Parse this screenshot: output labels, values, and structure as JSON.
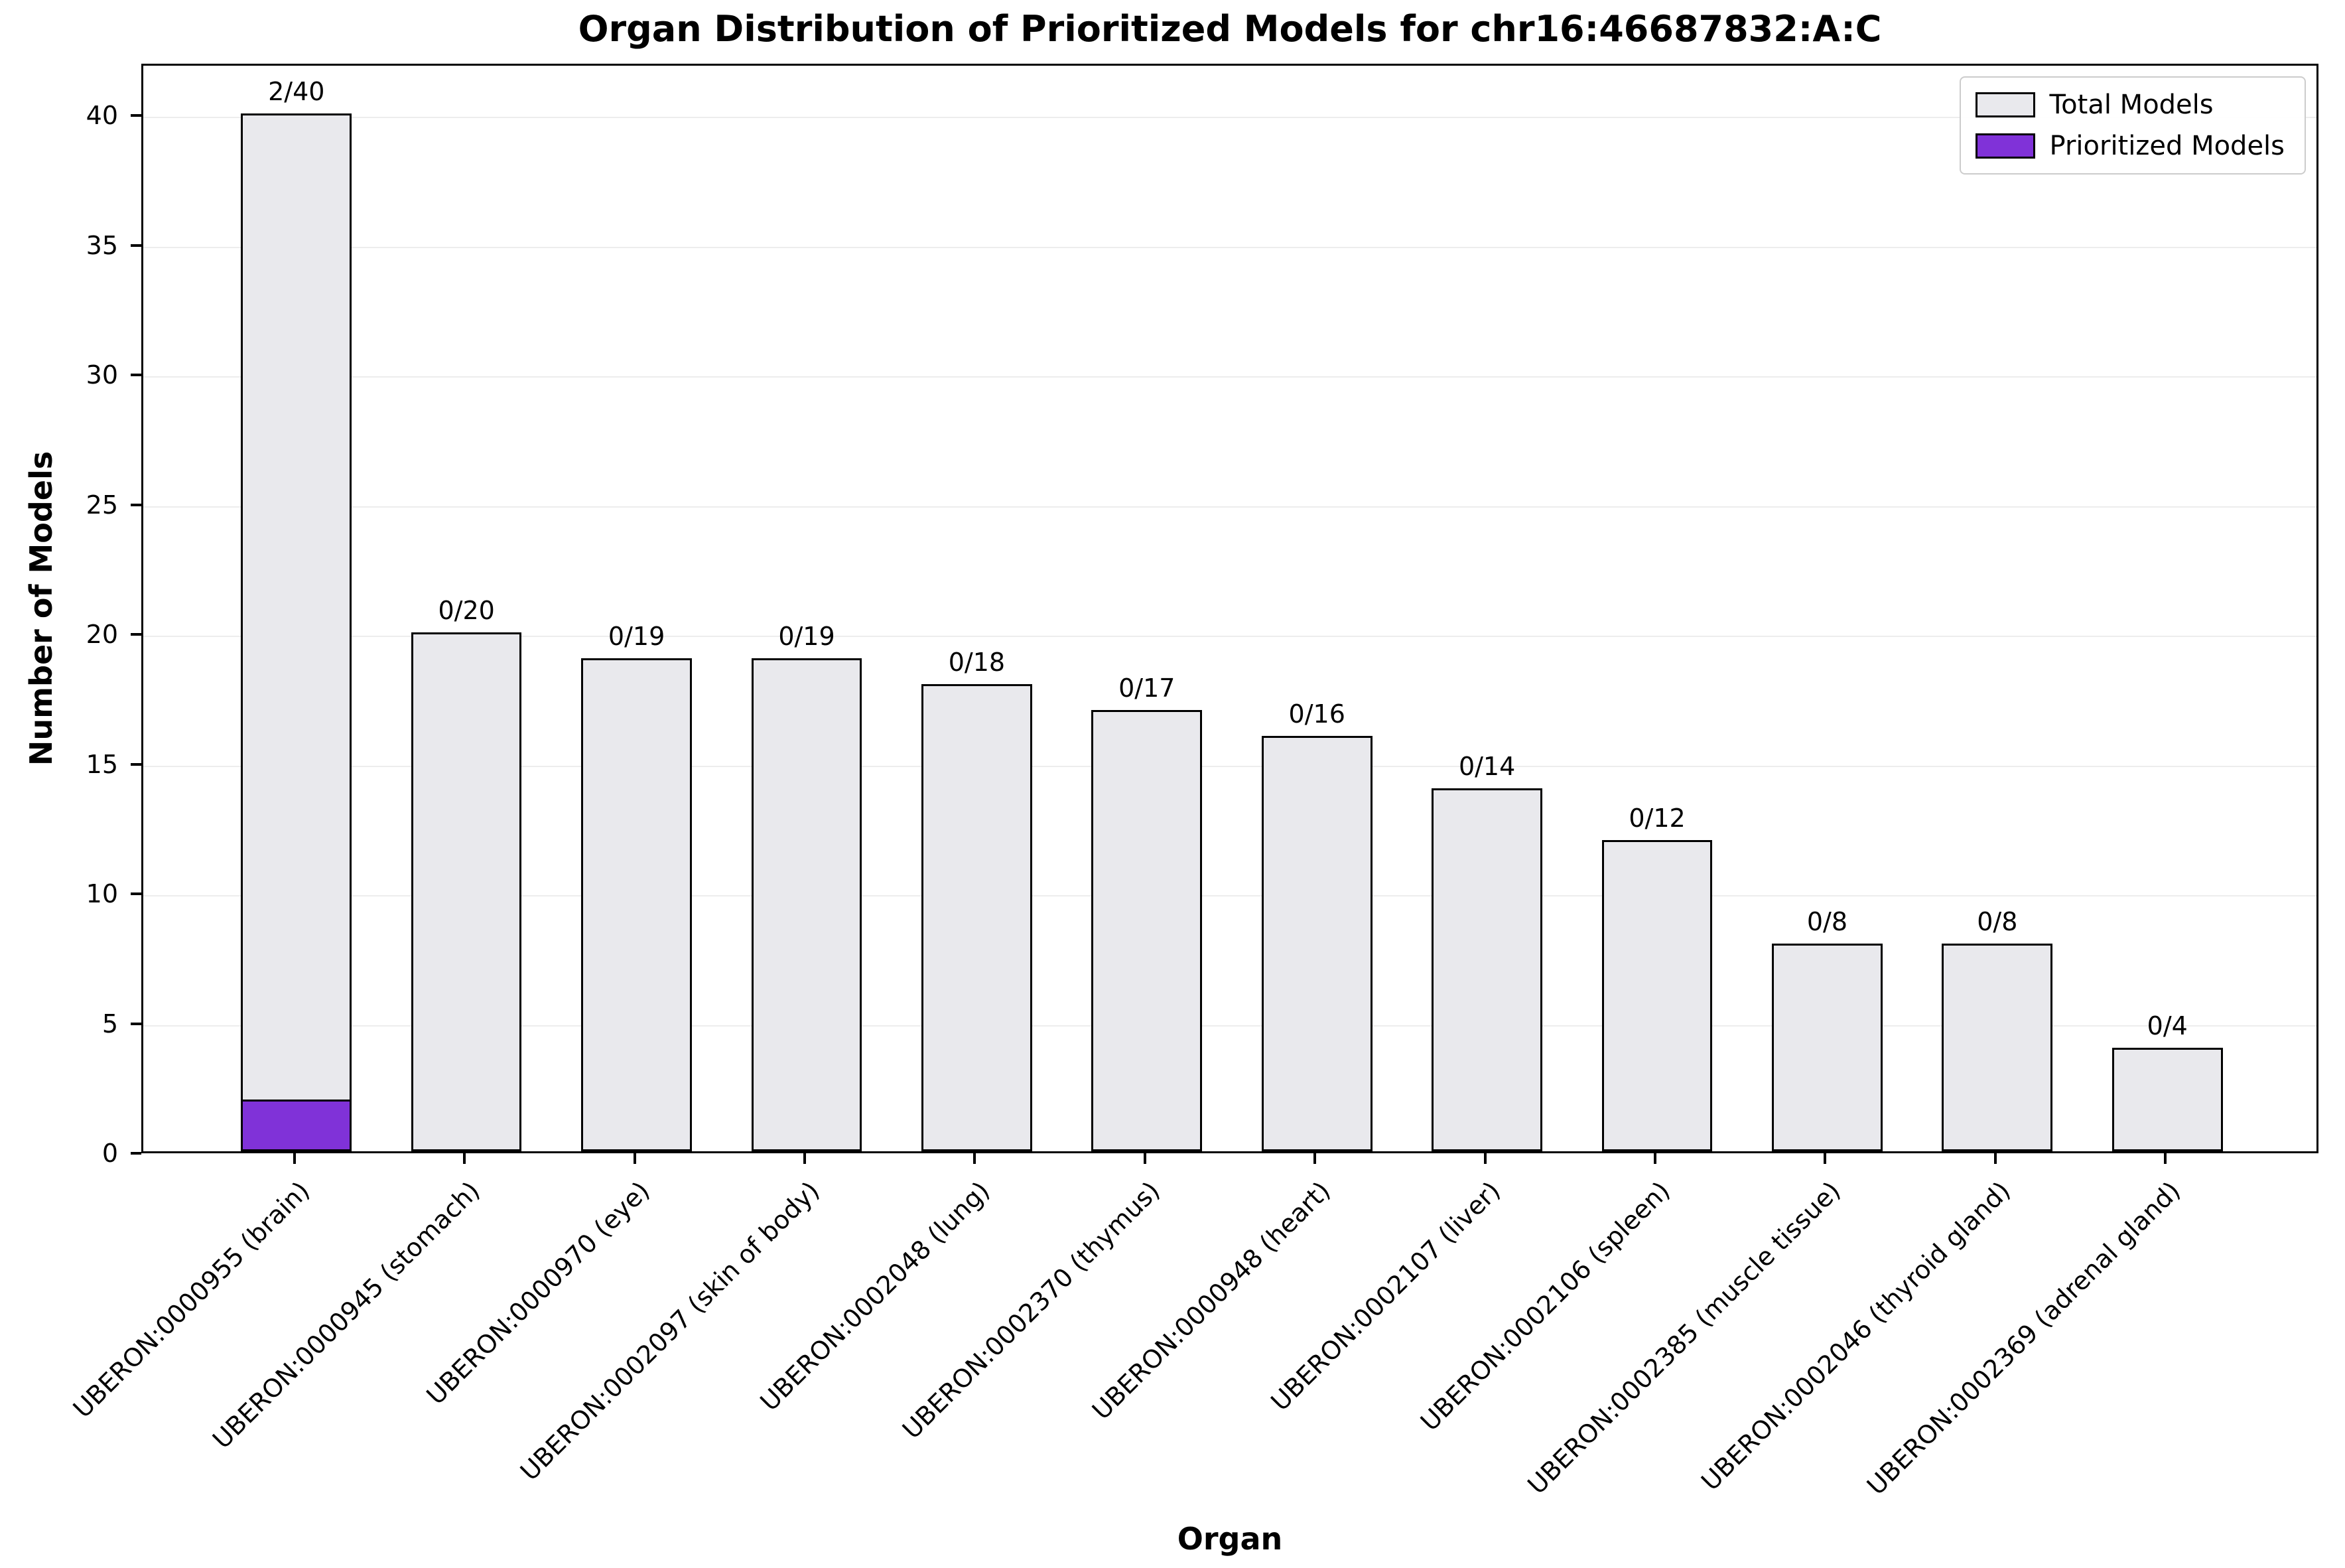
{
  "chart_data": {
    "type": "bar",
    "title": "Organ Distribution of Prioritized Models for chr16:46687832:A:C",
    "xlabel": "Organ",
    "ylabel": "Number of Models",
    "ylim": [
      0,
      42
    ],
    "yticks": [
      0,
      5,
      10,
      15,
      20,
      25,
      30,
      35,
      40
    ],
    "grid": true,
    "legend_position": "upper right",
    "categories": [
      "UBERON:0000955 (brain)",
      "UBERON:0000945 (stomach)",
      "UBERON:0000970 (eye)",
      "UBERON:0002097 (skin of body)",
      "UBERON:0002048 (lung)",
      "UBERON:0002370 (thymus)",
      "UBERON:0000948 (heart)",
      "UBERON:0002107 (liver)",
      "UBERON:0002106 (spleen)",
      "UBERON:0002385 (muscle tissue)",
      "UBERON:0002046 (thyroid gland)",
      "UBERON:0002369 (adrenal gland)"
    ],
    "series": [
      {
        "name": "Total Models",
        "color": "#e9e9ed",
        "edge_color": "#000000",
        "values": [
          40,
          20,
          19,
          19,
          18,
          17,
          16,
          14,
          12,
          8,
          8,
          4
        ]
      },
      {
        "name": "Prioritized Models",
        "color": "#8032d8",
        "edge_color": "#000000",
        "values": [
          2,
          0,
          0,
          0,
          0,
          0,
          0,
          0,
          0,
          0,
          0,
          0
        ]
      }
    ],
    "bar_labels": [
      "2/40",
      "0/20",
      "0/19",
      "0/19",
      "0/18",
      "0/17",
      "0/16",
      "0/14",
      "0/12",
      "0/8",
      "0/8",
      "0/4"
    ]
  }
}
